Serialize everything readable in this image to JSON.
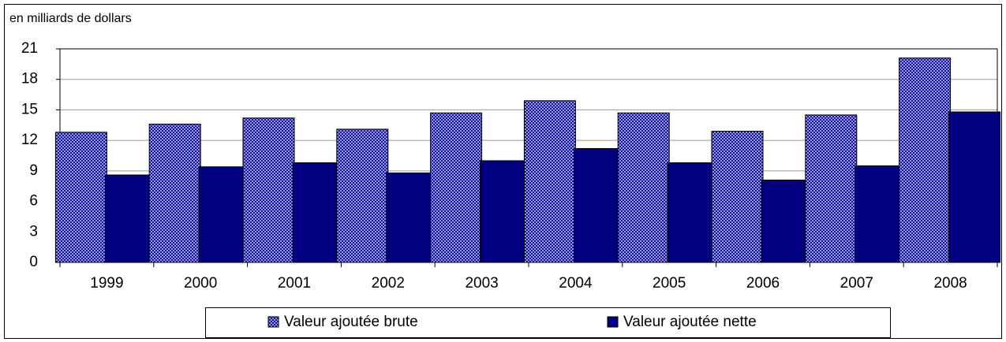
{
  "chart_data": {
    "type": "bar",
    "y_label": "en milliards de dollars",
    "categories": [
      "1999",
      "2000",
      "2001",
      "2002",
      "2003",
      "2004",
      "2005",
      "2006",
      "2007",
      "2008"
    ],
    "series": [
      {
        "name": "Valeur ajoutée brute",
        "color": "#000080",
        "pattern": "crosshatch",
        "values": [
          12.8,
          13.6,
          14.2,
          13.1,
          14.7,
          15.9,
          14.7,
          12.9,
          14.5,
          20.1
        ]
      },
      {
        "name": "Valeur ajoutée nette",
        "color": "#000080",
        "values": [
          8.6,
          9.4,
          9.8,
          8.8,
          10.0,
          11.2,
          9.8,
          8.1,
          9.5,
          14.8
        ]
      }
    ],
    "ylim": [
      0,
      21
    ],
    "yticks": [
      0,
      3,
      6,
      9,
      12,
      15,
      18,
      21
    ],
    "grid": true,
    "legend": "bottom"
  }
}
